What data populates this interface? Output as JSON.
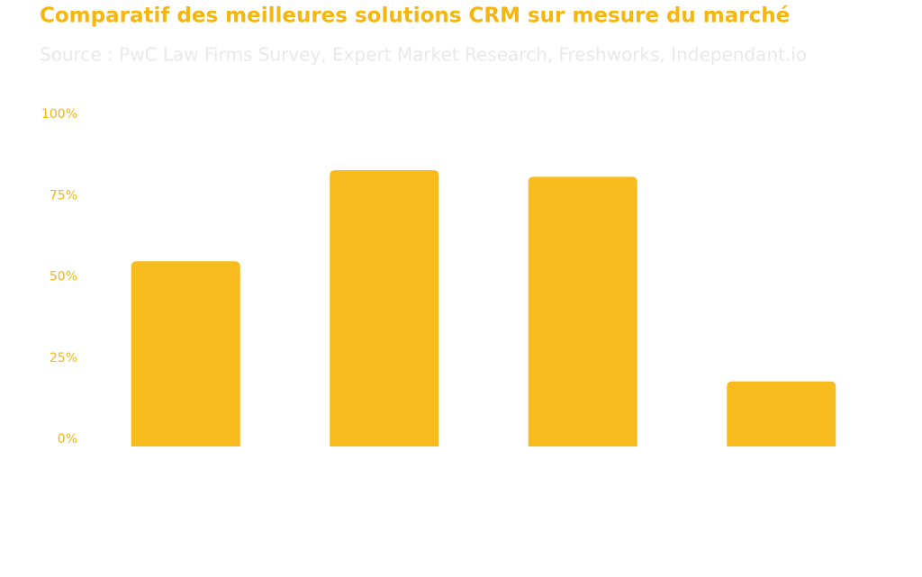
{
  "chart_data": {
    "type": "bar",
    "title": "Comparatif des meilleures solutions CRM sur mesure du marché",
    "subtitle": "Source : PwC Law Firms Survey, Expert Market Research, Freshworks, Independant.io",
    "categories": [
      null,
      null,
      null,
      null
    ],
    "values": [
      57,
      85,
      83,
      20
    ],
    "color": "#f7bb1e",
    "ylim": [
      0,
      100
    ],
    "yticks": [
      {
        "value": 0,
        "label": "0%"
      },
      {
        "value": 25,
        "label": "25%"
      },
      {
        "value": 50,
        "label": "50%"
      },
      {
        "value": 75,
        "label": "75%"
      },
      {
        "value": 100,
        "label": "100%"
      }
    ],
    "grid": false
  }
}
